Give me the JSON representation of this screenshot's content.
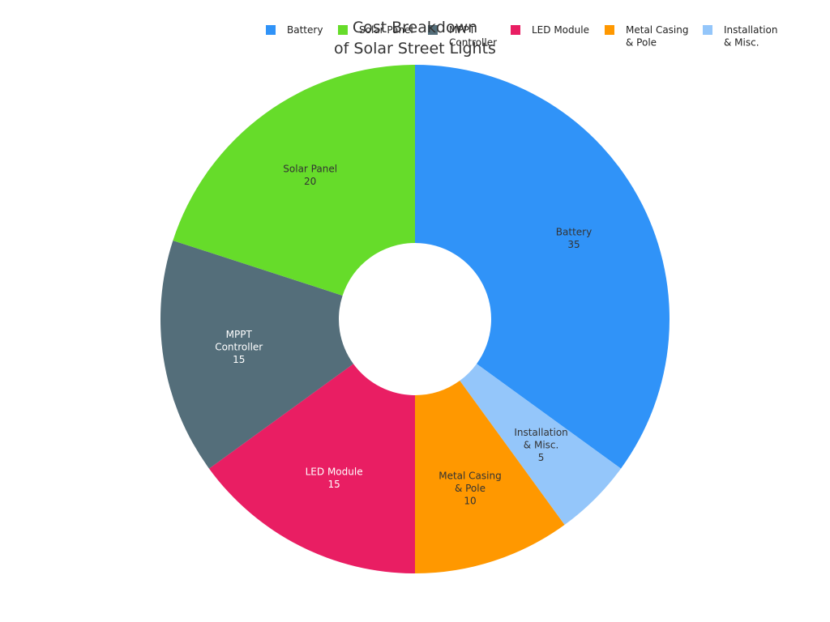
{
  "chart_data": {
    "type": "pie",
    "donut": true,
    "title_lines": [
      "Cost Breakdown",
      "of Solar Street Lights"
    ],
    "legend_position": "top-right",
    "slices": [
      {
        "label_lines": [
          "Battery"
        ],
        "legend_lines": [
          "Battery"
        ],
        "value": 35,
        "value_label": "35",
        "color": "#3093f8",
        "label_color": "#333333"
      },
      {
        "label_lines": [
          "Installation",
          "& Misc."
        ],
        "legend_lines": [
          "Installation",
          "& Misc."
        ],
        "value": 5,
        "value_label": "5",
        "color": "#94c6fa",
        "label_color": "#333333"
      },
      {
        "label_lines": [
          "Metal Casing",
          "& Pole"
        ],
        "legend_lines": [
          "Metal Casing",
          "& Pole"
        ],
        "value": 10,
        "value_label": "10",
        "color": "#ff9800",
        "label_color": "#333333"
      },
      {
        "label_lines": [
          "LED Module"
        ],
        "legend_lines": [
          "LED Module"
        ],
        "value": 15,
        "value_label": "15",
        "color": "#e91e63",
        "label_color": "#ffffff"
      },
      {
        "label_lines": [
          "MPPT",
          "Controller"
        ],
        "legend_lines": [
          "MPPT",
          "Controller"
        ],
        "value": 15,
        "value_label": "15",
        "color": "#546e7a",
        "label_color": "#ffffff"
      },
      {
        "label_lines": [
          "Solar Panel"
        ],
        "legend_lines": [
          "Solar Panel"
        ],
        "value": 20,
        "value_label": "20",
        "color": "#66dc2a",
        "label_color": "#333333"
      }
    ],
    "legend_order": [
      0,
      5,
      4,
      3,
      2,
      1
    ]
  }
}
